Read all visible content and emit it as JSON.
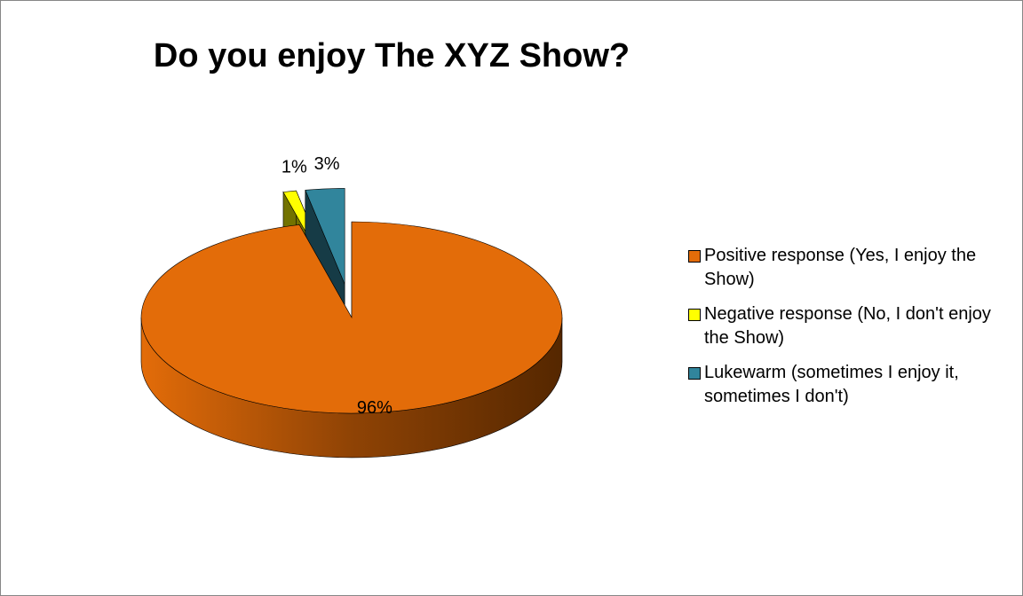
{
  "chart_data": {
    "type": "pie",
    "title": "Do you enjoy The XYZ Show?",
    "categories": [
      "Positive response (Yes, I enjoy the Show)",
      "Negative response (No, I don't enjoy the Show)",
      "Lukewarm (sometimes I enjoy it, sometimes I don't)"
    ],
    "values": [
      96,
      1,
      3
    ],
    "value_labels": [
      "96%",
      "1%",
      "3%"
    ],
    "colors": [
      "#E36C09",
      "#FFFF00",
      "#31859C"
    ],
    "legend": "right"
  }
}
